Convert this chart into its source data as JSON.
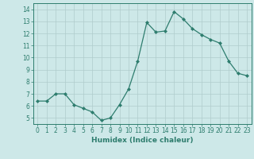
{
  "x": [
    0,
    1,
    2,
    3,
    4,
    5,
    6,
    7,
    8,
    9,
    10,
    11,
    12,
    13,
    14,
    15,
    16,
    17,
    18,
    19,
    20,
    21,
    22,
    23
  ],
  "y": [
    6.4,
    6.4,
    7.0,
    7.0,
    6.1,
    5.8,
    5.5,
    4.8,
    5.0,
    6.1,
    7.4,
    9.7,
    12.9,
    12.1,
    12.2,
    13.8,
    13.2,
    12.4,
    11.9,
    11.5,
    11.2,
    9.7,
    8.7,
    8.5
  ],
  "line_color": "#2e7d6e",
  "marker": "D",
  "marker_size": 2.0,
  "bg_color": "#cde8e8",
  "grid_color": "#b0cccc",
  "xlabel": "Humidex (Indice chaleur)",
  "xlim": [
    -0.5,
    23.5
  ],
  "ylim": [
    4.5,
    14.5
  ],
  "yticks": [
    5,
    6,
    7,
    8,
    9,
    10,
    11,
    12,
    13,
    14
  ],
  "xticks": [
    0,
    1,
    2,
    3,
    4,
    5,
    6,
    7,
    8,
    9,
    10,
    11,
    12,
    13,
    14,
    15,
    16,
    17,
    18,
    19,
    20,
    21,
    22,
    23
  ],
  "tick_color": "#2e7d6e",
  "label_color": "#2e7d6e",
  "axis_color": "#2e7d6e",
  "xlabel_fontsize": 6.5,
  "tick_fontsize": 5.5,
  "linewidth": 0.9
}
